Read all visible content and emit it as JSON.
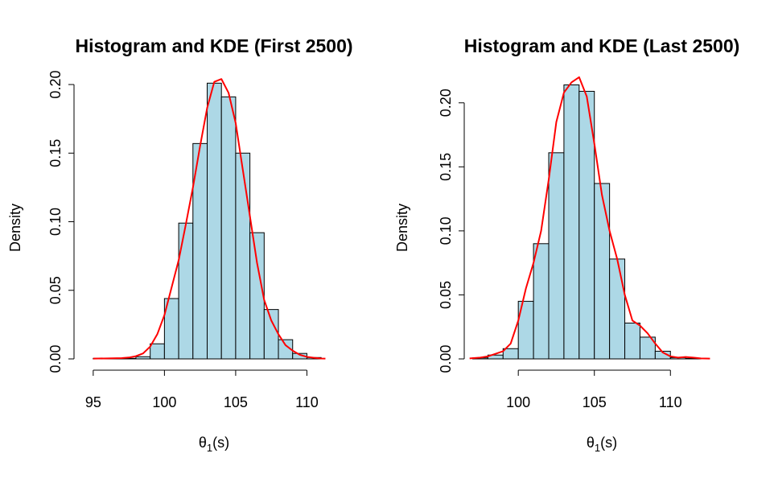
{
  "chart_data": [
    {
      "type": "bar",
      "title": "Histogram and KDE (First 2500)",
      "xlabel": "θ₁(s)",
      "xlabel_main": "θ",
      "xlabel_sub": "1",
      "xlabel_suffix": "(s)",
      "ylabel": "Density",
      "bar_color": "#add8e6",
      "kde_color": "#ff0000",
      "bin_edges": [
        95,
        96,
        97,
        98,
        99,
        100,
        101,
        102,
        103,
        104,
        105,
        106,
        107,
        108,
        109,
        110,
        111
      ],
      "values": [
        0.0004,
        0.0004,
        0.0004,
        0.0016,
        0.011,
        0.044,
        0.099,
        0.157,
        0.201,
        0.191,
        0.15,
        0.092,
        0.036,
        0.014,
        0.004,
        0.001
      ],
      "kde": {
        "x": [
          95,
          96,
          97,
          97.5,
          98,
          98.5,
          99,
          99.5,
          100,
          100.5,
          101,
          101.5,
          102,
          102.5,
          103,
          103.5,
          104,
          104.5,
          105,
          105.5,
          106,
          106.5,
          107,
          107.5,
          108,
          108.5,
          109,
          109.5,
          110,
          110.5,
          111,
          111.3
        ],
        "y": [
          0.0002,
          0.0004,
          0.0006,
          0.001,
          0.002,
          0.004,
          0.009,
          0.018,
          0.032,
          0.052,
          0.072,
          0.098,
          0.125,
          0.155,
          0.183,
          0.202,
          0.204,
          0.194,
          0.172,
          0.138,
          0.104,
          0.07,
          0.043,
          0.028,
          0.018,
          0.01,
          0.006,
          0.003,
          0.0015,
          0.0008,
          0.0003,
          0.0002
        ]
      },
      "x_ticks": [
        95,
        100,
        105,
        110
      ],
      "x_tick_labels": [
        "95",
        "100",
        "105",
        "110"
      ],
      "y_ticks": [
        0,
        0.05,
        0.1,
        0.15,
        0.2
      ],
      "y_tick_labels": [
        "0.00",
        "0.05",
        "0.10",
        "0.15",
        "0.20"
      ],
      "xlim": [
        94.5,
        111.5
      ],
      "ylim": [
        0,
        0.21
      ],
      "grid": false
    },
    {
      "type": "bar",
      "title": "Histogram and KDE (Last 2500)",
      "xlabel": "θ₁(s)",
      "xlabel_main": "θ",
      "xlabel_sub": "1",
      "xlabel_suffix": "(s)",
      "ylabel": "Density",
      "bar_color": "#add8e6",
      "kde_color": "#ff0000",
      "bin_edges": [
        97,
        98,
        99,
        100,
        101,
        102,
        103,
        104,
        105,
        106,
        107,
        108,
        109,
        110,
        111,
        112
      ],
      "values": [
        0.0008,
        0.003,
        0.008,
        0.045,
        0.09,
        0.161,
        0.214,
        0.209,
        0.137,
        0.078,
        0.028,
        0.017,
        0.006,
        0.001,
        0.0004
      ],
      "kde": {
        "x": [
          96.8,
          97.5,
          98,
          98.5,
          99,
          99.5,
          100,
          100.5,
          101,
          101.5,
          102,
          102.5,
          103,
          103.5,
          104,
          104.5,
          105,
          105.5,
          106,
          106.5,
          107,
          107.5,
          108,
          108.5,
          109,
          109.5,
          110,
          110.5,
          111,
          111.5,
          112,
          112.6
        ],
        "y": [
          0.0004,
          0.001,
          0.002,
          0.004,
          0.006,
          0.012,
          0.03,
          0.055,
          0.075,
          0.1,
          0.14,
          0.185,
          0.208,
          0.216,
          0.22,
          0.205,
          0.168,
          0.128,
          0.1,
          0.078,
          0.05,
          0.03,
          0.026,
          0.02,
          0.012,
          0.005,
          0.002,
          0.001,
          0.0015,
          0.001,
          0.0004,
          0.0002
        ]
      },
      "x_ticks": [
        100,
        105,
        110
      ],
      "x_tick_labels": [
        "100",
        "105",
        "110"
      ],
      "y_ticks": [
        0,
        0.05,
        0.1,
        0.15,
        0.2
      ],
      "y_tick_labels": [
        "0.00",
        "0.05",
        "0.10",
        "0.15",
        "0.20"
      ],
      "xlim": [
        96.5,
        113
      ],
      "ylim": [
        0,
        0.225
      ],
      "grid": false
    }
  ]
}
